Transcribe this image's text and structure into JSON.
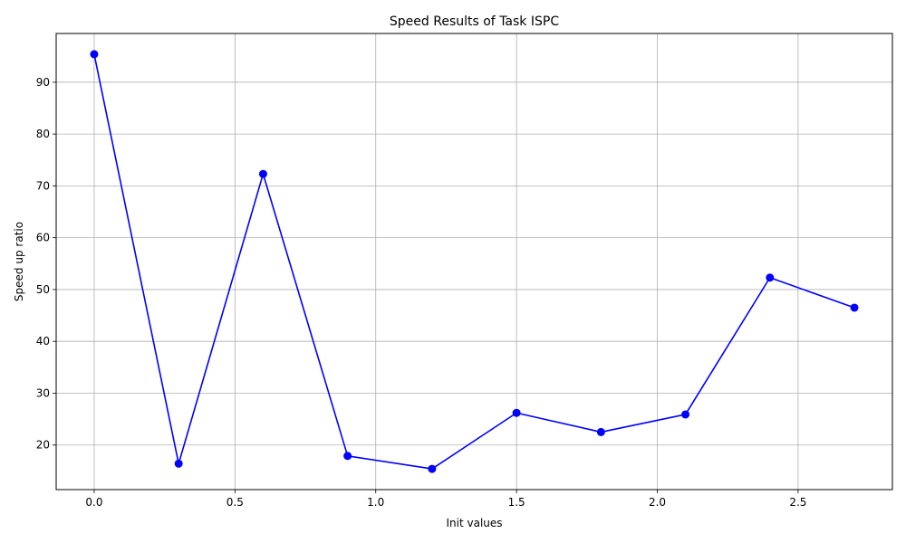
{
  "chart_data": {
    "type": "line",
    "title": "Speed Results of Task ISPC",
    "xlabel": "Init values",
    "ylabel": "Speed up ratio",
    "x": [
      0.0,
      0.3,
      0.6,
      0.9,
      1.2,
      1.5,
      1.8,
      2.1,
      2.4,
      2.7
    ],
    "series": [
      {
        "values": [
          95.4,
          16.4,
          72.3,
          17.9,
          15.4,
          26.2,
          22.5,
          25.9,
          52.3,
          46.5
        ],
        "color": "#0000ff",
        "marker": "circle"
      }
    ],
    "xlim": [
      -0.135,
      2.835
    ],
    "ylim": [
      11.4,
      99.4
    ],
    "xticks": [
      "0.0",
      "0.5",
      "1.0",
      "1.5",
      "2.0",
      "2.5"
    ],
    "yticks": [
      "20",
      "30",
      "40",
      "50",
      "60",
      "70",
      "80",
      "90"
    ],
    "grid": true,
    "grid_color": "#b0b0b0",
    "legend": "none"
  }
}
